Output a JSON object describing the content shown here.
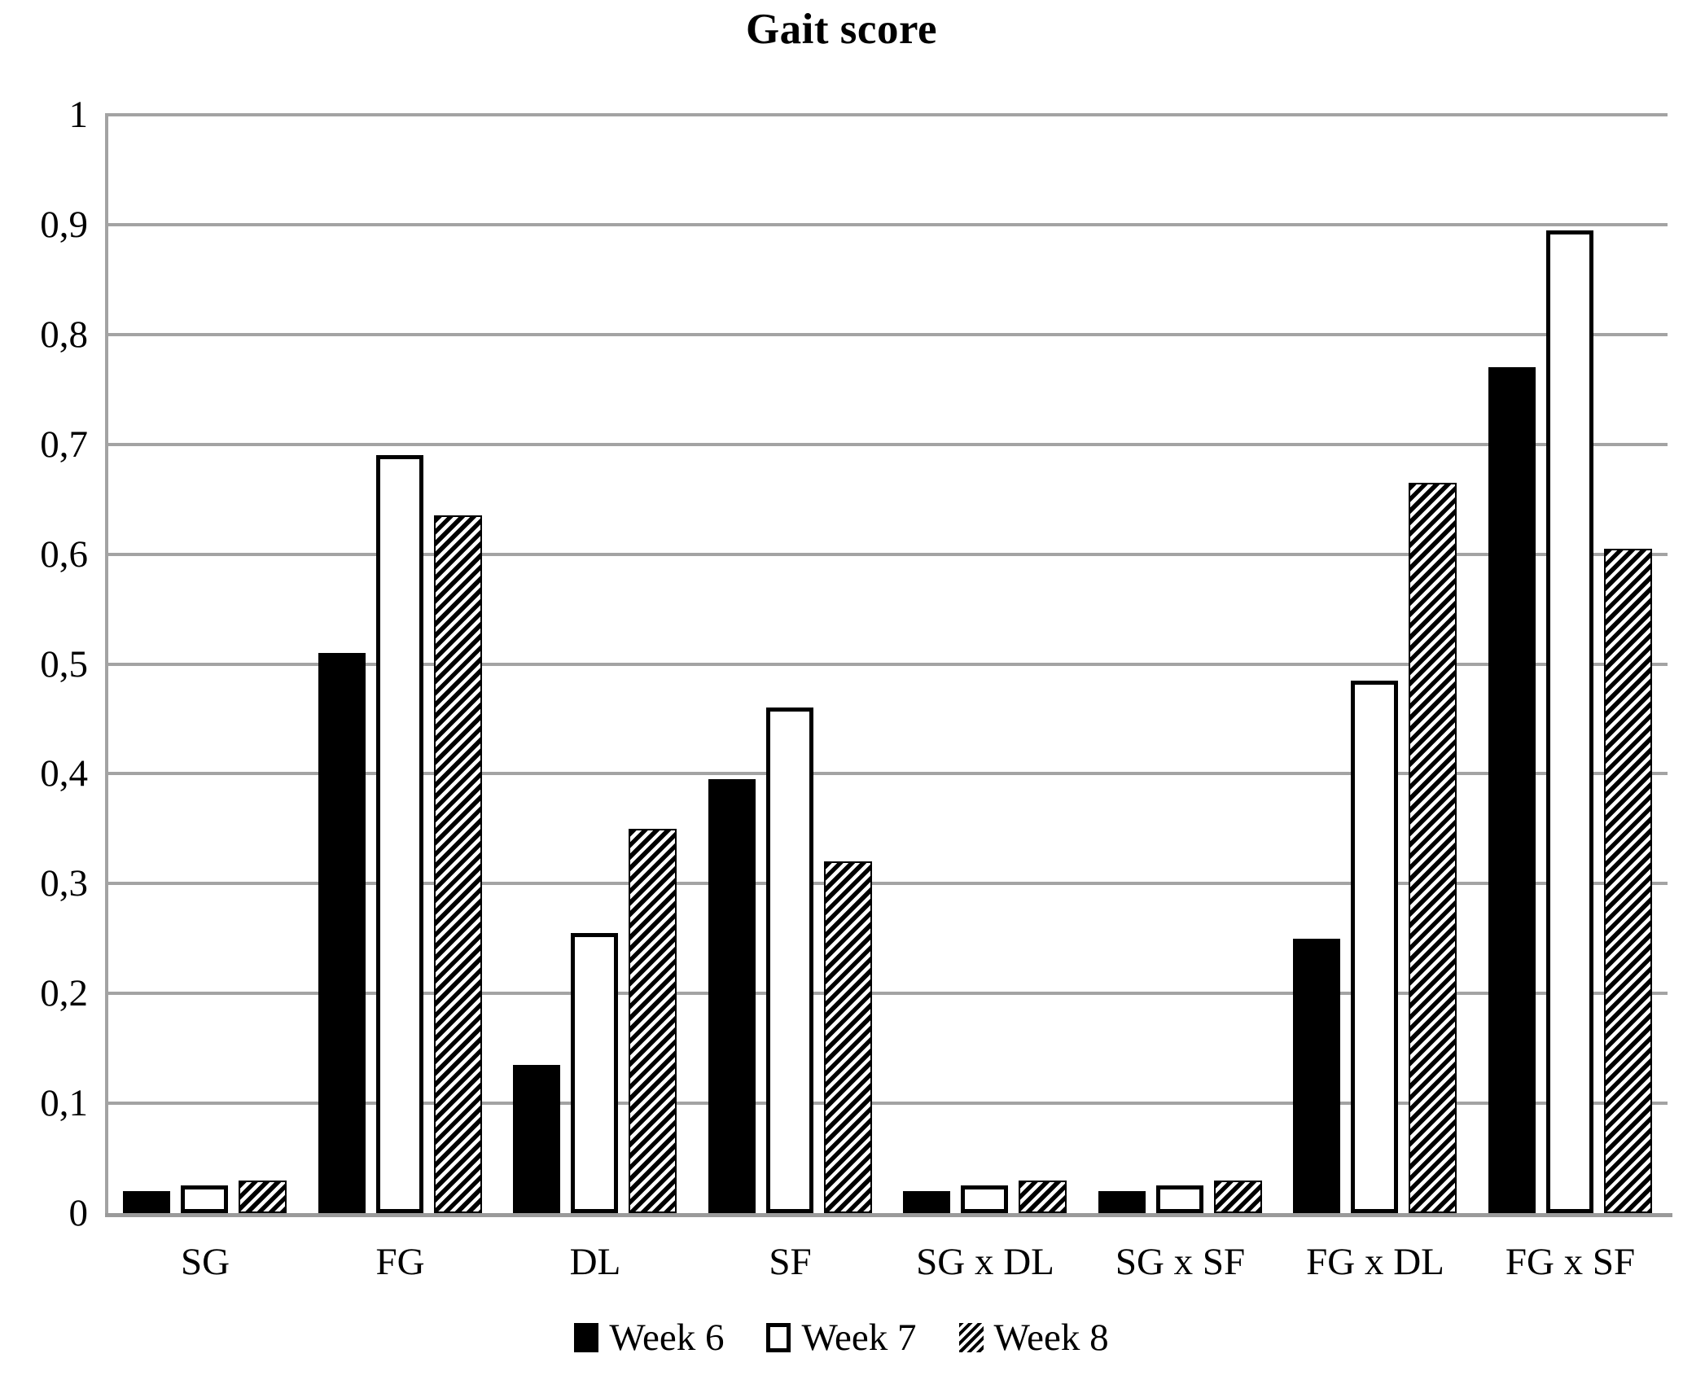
{
  "title": "Gait score",
  "chart_data": {
    "type": "bar",
    "title": "Gait score",
    "xlabel": "",
    "ylabel": "",
    "categories": [
      "SG",
      "FG",
      "DL",
      "SF",
      "SG x DL",
      "SG x SF",
      "FG x DL",
      "FG x SF"
    ],
    "series": [
      {
        "name": "Week 6",
        "values": [
          0.02,
          0.51,
          0.135,
          0.395,
          0.02,
          0.02,
          0.25,
          0.77
        ]
      },
      {
        "name": "Week 7",
        "values": [
          0.025,
          0.69,
          0.255,
          0.46,
          0.025,
          0.025,
          0.485,
          0.895
        ]
      },
      {
        "name": "Week 8",
        "values": [
          0.03,
          0.635,
          0.35,
          0.32,
          0.03,
          0.03,
          0.665,
          0.605
        ]
      }
    ],
    "ylim": [
      0,
      1
    ],
    "y_tick_step": 0.1,
    "y_ticks": [
      "0",
      "0,1",
      "0,2",
      "0,3",
      "0,4",
      "0,5",
      "0,6",
      "0,7",
      "0,8",
      "0,9",
      "1"
    ],
    "decimal_separator": ",",
    "grid": true,
    "legend_position": "bottom",
    "legend": [
      {
        "label": "Week 6",
        "style": "solid-black"
      },
      {
        "label": "Week 7",
        "style": "white-black-outline"
      },
      {
        "label": "Week 8",
        "style": "diagonal-hatch"
      }
    ],
    "colors": {
      "bar_fill": "#000000",
      "bar_outline": "#000000",
      "gridline": "#a3a3a3",
      "axis": "#9a9a9a",
      "background": "#ffffff",
      "text": "#000000"
    }
  }
}
